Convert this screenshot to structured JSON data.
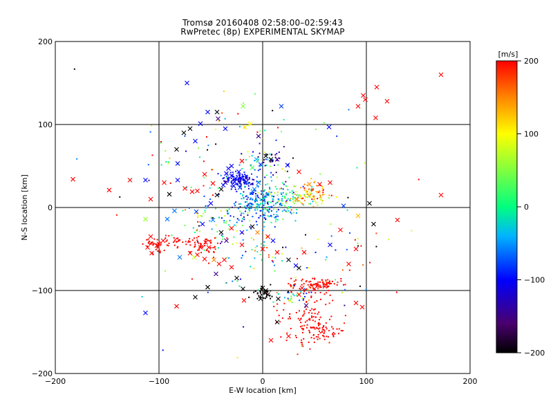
{
  "chart_data": {
    "type": "scatter",
    "title": "Tromsø 20160408 02:58:00–02:59:43",
    "subtitle": "RwPretec (8p) EXPERIMENTAL SKYMAP",
    "xlabel": "E-W location [km]",
    "ylabel": "N-S location [km]",
    "xlim": [
      -200,
      200
    ],
    "ylim": [
      -200,
      200
    ],
    "x_ticks": [
      -200,
      -100,
      0,
      100,
      200
    ],
    "y_ticks": [
      -200,
      -100,
      0,
      100,
      200
    ],
    "grid": true,
    "colorbar": {
      "unit": "[m/s]",
      "range": [
        -200,
        200
      ],
      "ticks": [
        200,
        100,
        0,
        -100,
        -200
      ],
      "colors": [
        "#000000",
        "#4a006e",
        "#0000ff",
        "#00b4ff",
        "#00ff7f",
        "#ffff00",
        "#ff8000",
        "#ff0000"
      ]
    },
    "series": [
      {
        "marker": "x",
        "points": [
          [
            -183,
            34,
            200
          ],
          [
            -148,
            21,
            200
          ],
          [
            -128,
            33,
            200
          ],
          [
            -113,
            33,
            -100
          ],
          [
            -108,
            10,
            200
          ],
          [
            -113,
            -14,
            60
          ],
          [
            -92,
            -14,
            -60
          ],
          [
            -108,
            -35,
            200
          ],
          [
            -111,
            -48,
            200
          ],
          [
            -107,
            -55,
            200
          ],
          [
            -100,
            -44,
            200
          ],
          [
            -96,
            -40,
            200
          ],
          [
            -102,
            -46,
            200
          ],
          [
            -113,
            -127,
            -100
          ],
          [
            -83,
            -119,
            200
          ],
          [
            -83,
            70,
            -200
          ],
          [
            -82,
            53,
            -100
          ],
          [
            -82,
            33,
            -100
          ],
          [
            -76,
            90,
            -200
          ],
          [
            -73,
            150,
            -100
          ],
          [
            -70,
            95,
            -200
          ],
          [
            -65,
            80,
            -100
          ],
          [
            -60,
            101,
            -100
          ],
          [
            -53,
            115,
            -100
          ],
          [
            -44,
            115,
            -200
          ],
          [
            -43,
            107,
            -150
          ],
          [
            -36,
            95,
            -100
          ],
          [
            -30,
            50,
            -100
          ],
          [
            -35,
            41,
            -100
          ],
          [
            -30,
            38,
            -100
          ],
          [
            -26,
            35,
            -100
          ],
          [
            -23,
            43,
            -100
          ],
          [
            -27,
            31,
            -100
          ],
          [
            -21,
            36,
            -100
          ],
          [
            -48,
            29,
            200
          ],
          [
            -56,
            40,
            200
          ],
          [
            -63,
            20,
            200
          ],
          [
            -68,
            19,
            200
          ],
          [
            -64,
            -5,
            -80
          ],
          [
            -55,
            -42,
            200
          ],
          [
            -60,
            -48,
            200
          ],
          [
            -52,
            -48,
            200
          ],
          [
            -63,
            -57,
            200
          ],
          [
            -56,
            -62,
            200
          ],
          [
            -47,
            -63,
            150
          ],
          [
            -53,
            -96,
            -200
          ],
          [
            -65,
            -108,
            -200
          ],
          [
            -37,
            -63,
            200
          ],
          [
            -42,
            -68,
            200
          ],
          [
            -30,
            -72,
            200
          ],
          [
            -20,
            -45,
            200
          ],
          [
            -35,
            -40,
            -150
          ],
          [
            -19,
            -98,
            -200
          ],
          [
            -18,
            -112,
            200
          ],
          [
            0,
            -97,
            -200
          ],
          [
            3,
            -100,
            -200
          ],
          [
            5,
            -105,
            -200
          ],
          [
            -2,
            -110,
            -200
          ],
          [
            15,
            -110,
            -200
          ],
          [
            14,
            -138,
            -200
          ],
          [
            8,
            -160,
            200
          ],
          [
            25,
            -155,
            200
          ],
          [
            -19,
            122,
            50
          ],
          [
            18,
            122,
            -80
          ],
          [
            -17,
            97,
            100
          ],
          [
            -12,
            101,
            100
          ],
          [
            -4,
            86,
            -150
          ],
          [
            3,
            62,
            -200
          ],
          [
            8,
            58,
            -200
          ],
          [
            14,
            58,
            -150
          ],
          [
            24,
            51,
            -100
          ],
          [
            35,
            43,
            200
          ],
          [
            45,
            28,
            150
          ],
          [
            55,
            28,
            200
          ],
          [
            65,
            30,
            200
          ],
          [
            33,
            10,
            150
          ],
          [
            75,
            -27,
            200
          ],
          [
            65,
            -45,
            -100
          ],
          [
            90,
            -50,
            200
          ],
          [
            83,
            -68,
            200
          ],
          [
            50,
            -98,
            200
          ],
          [
            60,
            -95,
            200
          ],
          [
            35,
            -105,
            200
          ],
          [
            38,
            -97,
            200
          ],
          [
            42,
            -118,
            -150
          ],
          [
            90,
            -115,
            200
          ],
          [
            96,
            -120,
            200
          ],
          [
            32,
            -70,
            -100
          ],
          [
            35,
            -73,
            -200
          ],
          [
            25,
            -63,
            -200
          ],
          [
            14,
            -54,
            200
          ],
          [
            40,
            -54,
            200
          ],
          [
            64,
            97,
            -100
          ],
          [
            97,
            135,
            200
          ],
          [
            99,
            130,
            200
          ],
          [
            92,
            122,
            200
          ],
          [
            110,
            145,
            200
          ],
          [
            120,
            128,
            200
          ],
          [
            109,
            108,
            200
          ],
          [
            130,
            -15,
            200
          ],
          [
            107,
            -20,
            -200
          ],
          [
            103,
            5,
            -200
          ],
          [
            92,
            -10,
            130
          ],
          [
            78,
            2,
            -80
          ],
          [
            172,
            15,
            200
          ],
          [
            172,
            160,
            200
          ],
          [
            -36,
            30,
            -150
          ],
          [
            -28,
            26,
            -100
          ],
          [
            -38,
            27,
            -100
          ],
          [
            -33,
            47,
            -100
          ],
          [
            -22,
            24,
            -80
          ],
          [
            -16,
            30,
            -80
          ],
          [
            -8,
            22,
            -60
          ],
          [
            -4,
            30,
            -60
          ],
          [
            -10,
            48,
            30
          ],
          [
            -6,
            58,
            -40
          ],
          [
            -2,
            52,
            -80
          ],
          [
            -20,
            56,
            200
          ],
          [
            -75,
            23,
            200
          ],
          [
            -95,
            30,
            200
          ],
          [
            -90,
            16,
            -200
          ],
          [
            -85,
            -4,
            -60
          ],
          [
            -50,
            5,
            -100
          ],
          [
            -44,
            15,
            -200
          ],
          [
            -40,
            22,
            -200
          ],
          [
            -48,
            -15,
            -60
          ],
          [
            -58,
            -20,
            -100
          ],
          [
            -40,
            -30,
            -200
          ],
          [
            -30,
            -25,
            200
          ],
          [
            -20,
            -30,
            -100
          ],
          [
            -10,
            -23,
            -200
          ],
          [
            -5,
            -30,
            150
          ],
          [
            5,
            -35,
            200
          ],
          [
            10,
            -40,
            -100
          ],
          [
            0,
            -50,
            200
          ],
          [
            -66,
            -60,
            80
          ],
          [
            -70,
            -55,
            200
          ],
          [
            -80,
            -60,
            -60
          ],
          [
            -45,
            -80,
            -150
          ],
          [
            -25,
            -85,
            -200
          ]
        ]
      },
      {
        "marker": "dot",
        "clusters": [
          {
            "cx": -25,
            "cy": 35,
            "sx": 7,
            "sy": 5,
            "n": 70,
            "v": -100,
            "vs": 12
          },
          {
            "cx": -18,
            "cy": 30,
            "sx": 6,
            "sy": 5,
            "n": 45,
            "v": -115,
            "vs": 12
          },
          {
            "cx": -8,
            "cy": 15,
            "sx": 9,
            "sy": 7,
            "n": 40,
            "v": -80,
            "vs": 25
          },
          {
            "cx": 5,
            "cy": 8,
            "sx": 15,
            "sy": 12,
            "n": 100,
            "v": -40,
            "vs": 35
          },
          {
            "cx": 0,
            "cy": 0,
            "sx": 15,
            "sy": 10,
            "n": 110,
            "v": -55,
            "vs": 30
          },
          {
            "cx": 22,
            "cy": 12,
            "sx": 12,
            "sy": 9,
            "n": 60,
            "v": 30,
            "vs": 45
          },
          {
            "cx": 42,
            "cy": 14,
            "sx": 10,
            "sy": 8,
            "n": 60,
            "v": 110,
            "vs": 40
          },
          {
            "cx": 55,
            "cy": 18,
            "sx": 8,
            "sy": 7,
            "n": 30,
            "v": 150,
            "vs": 35
          },
          {
            "cx": -5,
            "cy": 50,
            "sx": 12,
            "sy": 12,
            "n": 35,
            "v": -30,
            "vs": 60
          },
          {
            "cx": 10,
            "cy": 55,
            "sx": 12,
            "sy": 10,
            "n": 30,
            "v": -150,
            "vs": 40
          },
          {
            "cx": -30,
            "cy": -10,
            "sx": 15,
            "sy": 15,
            "n": 50,
            "v": -40,
            "vs": 80
          },
          {
            "cx": -60,
            "cy": -10,
            "sx": 15,
            "sy": 15,
            "n": 30,
            "v": 40,
            "vs": 90
          },
          {
            "cx": -80,
            "cy": -42,
            "sx": 22,
            "sy": 4,
            "n": 55,
            "v": 200,
            "vs": 6
          },
          {
            "cx": -55,
            "cy": -48,
            "sx": 7,
            "sy": 5,
            "n": 35,
            "v": 200,
            "vs": 6
          },
          {
            "cx": -103,
            "cy": -45,
            "sx": 5,
            "sy": 6,
            "n": 25,
            "v": 200,
            "vs": 6
          },
          {
            "cx": 52,
            "cy": -92,
            "sx": 12,
            "sy": 4,
            "n": 90,
            "v": 200,
            "vs": 8
          },
          {
            "cx": 45,
            "cy": -135,
            "sx": 14,
            "sy": 18,
            "n": 130,
            "v": 200,
            "vs": 8
          },
          {
            "cx": 60,
            "cy": -148,
            "sx": 6,
            "sy": 5,
            "n": 35,
            "v": 200,
            "vs": 6
          },
          {
            "cx": 0,
            "cy": -103,
            "sx": 5,
            "sy": 4,
            "n": 40,
            "v": -200,
            "vs": 6
          },
          {
            "cx": 30,
            "cy": -105,
            "sx": 8,
            "sy": 6,
            "n": 25,
            "v": -10,
            "vs": 80
          },
          {
            "cx": -10,
            "cy": 100,
            "sx": 18,
            "sy": 10,
            "n": 15,
            "v": 60,
            "vs": 100
          },
          {
            "cx": 0,
            "cy": -60,
            "sx": 20,
            "sy": 18,
            "n": 50,
            "v": 20,
            "vs": 120
          },
          {
            "cx": -80,
            "cy": 60,
            "sx": 18,
            "sy": 25,
            "n": 25,
            "v": 80,
            "vs": 140
          },
          {
            "cx": 80,
            "cy": -60,
            "sx": 25,
            "sy": 25,
            "n": 20,
            "v": 0,
            "vs": 150
          },
          {
            "cx": 0,
            "cy": 0,
            "sx": 90,
            "sy": 90,
            "n": 70,
            "v": 0,
            "vs": 150
          }
        ]
      }
    ]
  }
}
